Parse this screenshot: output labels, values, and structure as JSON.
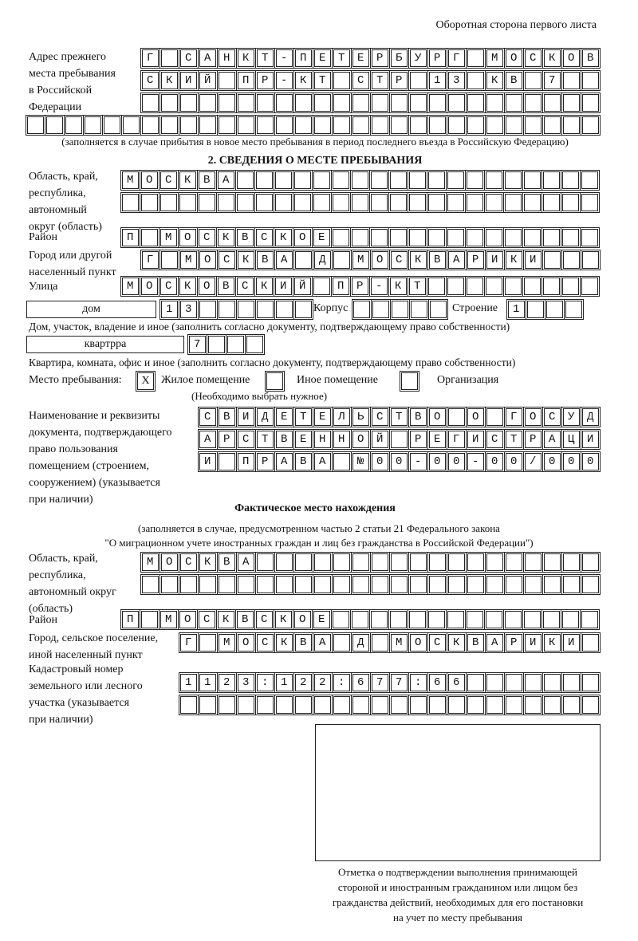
{
  "top_note": "Оборотная сторона первого листа",
  "prev_address": {
    "label": "Адрес прежнего\nместа пребывания\nв Российской\nФедерации",
    "rows": [
      "Г САНКТ-ПЕТЕРБУРГ МОСКОВ",
      "СКИЙ ПР-КТ СТР 13 КВ 7  ",
      "                        ",
      "                              "
    ],
    "caption": "(заполняется в случае прибытия в новое место пребывания в период последнего въезда в Российскую Федерацию)"
  },
  "section2": {
    "title": "2. СВЕДЕНИЯ О МЕСТЕ ПРЕБЫВАНИЯ",
    "region_label": "Область, край,\nреспублика,\nавтономный\nокруг (область)",
    "region_rows": [
      "МОСКВА                   ",
      "                         "
    ],
    "district_label": "Район",
    "district_row": "П МОСКВСКОЕ              ",
    "city_label": "Город или другой\nнаселенный пункт",
    "city_row": "Г МОСКВА Д МОСКВАРИКИ   ",
    "street_label": "Улица",
    "street_row": "МОСКОВСКИЙ ПР-КТ         ",
    "house_type": "дом",
    "house_row": "13      ",
    "korpus_label": "Корпус",
    "korpus_row": "     ",
    "building_label": "Строение",
    "building_row": "1   ",
    "house_caption": "Дом, участок, владение и иное (заполнить согласно документу, подтверждающему право собственности)",
    "flat_type": "квартрра",
    "flat_row": "7   ",
    "flat_caption": "Квартира, комната, офис и иное (заполнить согласно документу, подтверждающему право собственности)",
    "stay_label": "Место пребывания:",
    "stay_options": [
      {
        "mark": "X",
        "label": "Жилое помещение"
      },
      {
        "mark": "",
        "label": "Иное помещение"
      },
      {
        "mark": "",
        "label": "Организация"
      }
    ],
    "stay_note": "(Необходимо выбрать нужное)",
    "doc_label": "Наименование и реквизиты\nдокумента, подтверждающего\nправо пользования\nпомещением (строением,\nсооружением) (указывается\nпри наличии)",
    "doc_rows": [
      "СВИДЕТЕЛЬСТВО О ГОСУД",
      "АРСТВЕННОЙ РЕГИСТРАЦИ",
      "И ПРАВА №00-00-00/000"
    ]
  },
  "actual": {
    "title": "Фактическое место нахождения",
    "note1": "(заполняется в случае, предусмотренном частью 2 статьи 21 Федерального закона",
    "note2": "\"О миграционном учете иностранных граждан и лиц без гражданства в Российской Федерации\")",
    "region_label": "Область, край,\nреспублика,\nавтономный округ\n(область)",
    "region_rows": [
      "МОСКВА                  ",
      "                        "
    ],
    "district_label": "Район",
    "district_row": "П МОСКВСКОЕ              ",
    "city_label": "Город, сельское поселение,\nиной населенный пункт",
    "city_row": "Г МОСКВА Д МОСКВАРИКИ ",
    "cadastre_label": "Кадастровый номер\nземельного или лесного\nучастка (указывается\nпри наличии)",
    "cadastre_rows": [
      "1123:122:677:66       ",
      "                      "
    ]
  },
  "stamp_caption": "Отметка о подтверждении выполнения принимающей\nстороной и иностранным гражданином или лицом без\nгражданства действий, необходимых для его постановки\nна учет по месту пребывания"
}
